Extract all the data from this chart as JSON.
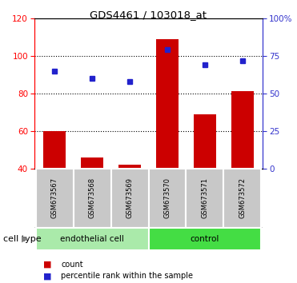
{
  "title": "GDS4461 / 103018_at",
  "samples": [
    "GSM673567",
    "GSM673568",
    "GSM673569",
    "GSM673570",
    "GSM673571",
    "GSM673572"
  ],
  "bar_values": [
    60,
    46,
    42,
    109,
    69,
    81
  ],
  "percentile_values": [
    65,
    60,
    58,
    79,
    69,
    72
  ],
  "bar_color": "#cc0000",
  "dot_color": "#2222cc",
  "left_ylim": [
    40,
    120
  ],
  "right_ylim": [
    0,
    100
  ],
  "left_yticks": [
    40,
    60,
    80,
    100,
    120
  ],
  "right_yticks": [
    0,
    25,
    50,
    75,
    100
  ],
  "right_yticklabels": [
    "0",
    "25",
    "50",
    "75",
    "100%"
  ],
  "dotted_lines": [
    60,
    80,
    100
  ],
  "groups": [
    {
      "label": "endothelial cell",
      "indices": [
        0,
        1,
        2
      ],
      "color": "#aaeaaa"
    },
    {
      "label": "control",
      "indices": [
        3,
        4,
        5
      ],
      "color": "#44dd44"
    }
  ],
  "cell_type_label": "cell type",
  "legend_count_label": "count",
  "legend_pct_label": "percentile rank within the sample",
  "bar_width": 0.6,
  "sample_box_color": "#c8c8c8",
  "sample_box_edge_color": "white"
}
